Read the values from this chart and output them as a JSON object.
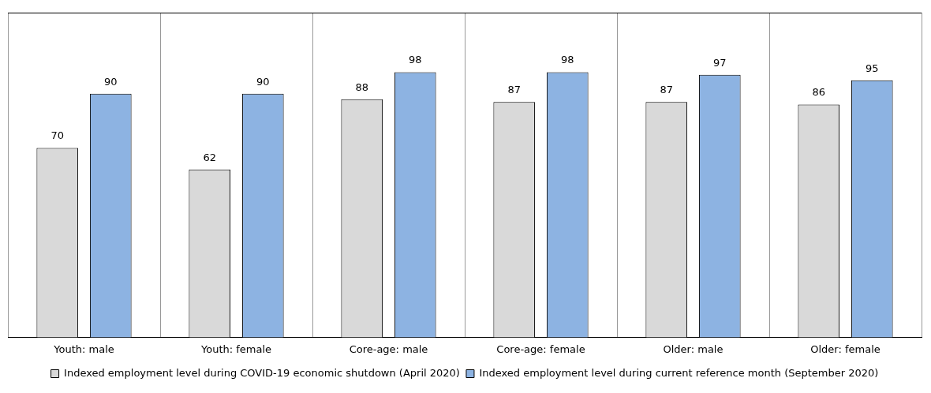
{
  "chart_data": {
    "type": "bar",
    "categories": [
      "Youth: male",
      "Youth: female",
      "Core-age: male",
      "Core-age: female",
      "Older: male",
      "Older: female"
    ],
    "series": [
      {
        "name": "Indexed employment level during COVID-19 economic shutdown (April 2020)",
        "color": "#d9d9d9",
        "values": [
          70,
          62,
          88,
          87,
          87,
          86
        ]
      },
      {
        "name": "Indexed employment level during current reference month (September 2020)",
        "color": "#8db3e2",
        "values": [
          90,
          90,
          98,
          98,
          97,
          95
        ]
      }
    ],
    "tick_labels": "x",
    "data_labels": true,
    "grid": "x",
    "legend": "bottom"
  }
}
